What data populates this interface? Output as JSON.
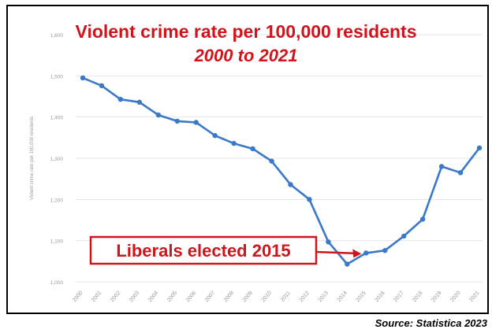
{
  "title": "Violent crime rate per 100,000 residents",
  "subtitle": "2000 to 2021",
  "source": "Source: Statistica 2023",
  "annotation": {
    "text": "Liberals elected 2015",
    "target_x": "2015"
  },
  "colors": {
    "line": "#3a78c8",
    "title": "#d0141c",
    "annotation": "#d0141c",
    "grid": "#e4e4e4",
    "tick": "#9a9a9a"
  },
  "chart_data": {
    "type": "line",
    "title": "Violent crime rate per 100,000 residents",
    "subtitle": "2000 to 2021",
    "ylabel": "Violent crime rate per 100,000 residents",
    "x": [
      "2000",
      "2001",
      "2002",
      "2003",
      "2004",
      "2005",
      "2006",
      "2007",
      "2008",
      "2009",
      "2010",
      "2011",
      "2012",
      "2013",
      "2014",
      "2015",
      "2016",
      "2017",
      "2018",
      "2019",
      "2020",
      "2021"
    ],
    "values": [
      1495,
      1476,
      1443,
      1436,
      1405,
      1390,
      1387,
      1355,
      1336,
      1323,
      1293,
      1236,
      1200,
      1097,
      1043,
      1070,
      1076,
      1111,
      1152,
      1280,
      1265,
      1325
    ],
    "y_ticks": [
      "1,000",
      "1,100",
      "1,200",
      "1,300",
      "1,400",
      "1,500",
      "1,600"
    ],
    "ylim": [
      1000,
      1600
    ],
    "grid": true,
    "legend": "none"
  }
}
